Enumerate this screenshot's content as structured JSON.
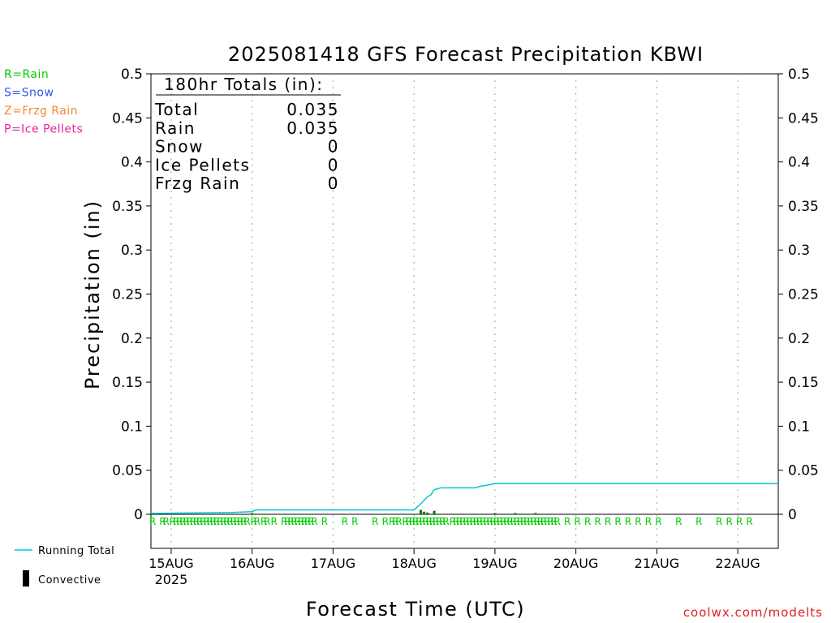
{
  "chart_data": {
    "type": "line",
    "title": "2025081418 GFS Forecast Precipitation KBWI",
    "xlabel": "Forecast Time (UTC)",
    "ylabel": "Precipitation (in)",
    "ylim": [
      0,
      0.5
    ],
    "y_ticks": [
      "0",
      "0.05",
      "0.1",
      "0.15",
      "0.2",
      "0.25",
      "0.3",
      "0.35",
      "0.4",
      "0.45",
      "0.5"
    ],
    "x_range_hours": [
      -6,
      180
    ],
    "x_ticks": [
      {
        "hour": 0,
        "label": "15AUG",
        "sublabel": "2025"
      },
      {
        "hour": 24,
        "label": "16AUG"
      },
      {
        "hour": 48,
        "label": "17AUG"
      },
      {
        "hour": 72,
        "label": "18AUG"
      },
      {
        "hour": 96,
        "label": "19AUG"
      },
      {
        "hour": 120,
        "label": "20AUG"
      },
      {
        "hour": 144,
        "label": "21AUG"
      },
      {
        "hour": 168,
        "label": "22AUG"
      }
    ],
    "grid": "vertical dotted at day boundaries",
    "series": [
      {
        "name": "Running Total",
        "color": "#00c8d2",
        "points": [
          [
            -6,
            0.001
          ],
          [
            18,
            0.002
          ],
          [
            24,
            0.003
          ],
          [
            25,
            0.005
          ],
          [
            36,
            0.005
          ],
          [
            72,
            0.005
          ],
          [
            74,
            0.012
          ],
          [
            76,
            0.02
          ],
          [
            77,
            0.022
          ],
          [
            78,
            0.028
          ],
          [
            80,
            0.03
          ],
          [
            90,
            0.03
          ],
          [
            92,
            0.032
          ],
          [
            95,
            0.034
          ],
          [
            96,
            0.035
          ],
          [
            180,
            0.035
          ]
        ]
      },
      {
        "name": "Convective",
        "color": "#000000",
        "bars": [
          [
            24,
            0.001
          ],
          [
            74,
            0.005
          ],
          [
            75,
            0.003
          ],
          [
            76,
            0.002
          ],
          [
            78,
            0.004
          ],
          [
            96,
            0.001
          ],
          [
            102,
            0.001
          ],
          [
            108,
            0.001
          ]
        ]
      }
    ],
    "precip_type_row": {
      "letter": "R",
      "color": "#00cc00",
      "hours": [
        -6,
        -3,
        -2,
        0,
        1,
        2,
        3,
        4,
        5,
        6,
        7,
        8,
        9,
        10,
        11,
        12,
        13,
        14,
        15,
        16,
        17,
        18,
        19,
        20,
        21,
        22,
        24,
        25,
        27,
        28,
        30,
        33,
        34,
        35,
        36,
        37,
        38,
        39,
        40,
        41,
        42,
        45,
        51,
        54,
        60,
        63,
        65,
        66,
        67,
        69,
        70,
        71,
        72,
        73,
        74,
        75,
        76,
        77,
        78,
        79,
        80,
        81,
        83,
        84,
        85,
        86,
        87,
        88,
        89,
        90,
        91,
        92,
        93,
        94,
        95,
        96,
        97,
        98,
        99,
        100,
        101,
        102,
        103,
        104,
        105,
        106,
        107,
        108,
        109,
        110,
        111,
        112,
        113,
        114,
        117,
        120,
        123,
        126,
        129,
        132,
        135,
        138,
        141,
        144,
        150,
        156,
        162,
        165,
        168,
        171
      ]
    },
    "totals_box": {
      "heading": "180hr Totals (in):",
      "rows": [
        {
          "label": "Total",
          "value": "0.035"
        },
        {
          "label": "Rain",
          "value": "0.035"
        },
        {
          "label": "Snow",
          "value": "0"
        },
        {
          "label": "Ice Pellets",
          "value": "0"
        },
        {
          "label": "Frzg Rain",
          "value": "0"
        }
      ]
    },
    "type_legend": [
      {
        "text": "R=Rain",
        "color": "#00cc00"
      },
      {
        "text": "S=Snow",
        "color": "#3355ee"
      },
      {
        "text": "Z=Frzg Rain",
        "color": "#ee8833"
      },
      {
        "text": "P=Ice Pellets",
        "color": "#ee2299"
      }
    ],
    "legend": {
      "placement": "bottom-left",
      "items": [
        "Running Total",
        "Convective"
      ]
    },
    "credit": "coolwx.com/modelts"
  }
}
